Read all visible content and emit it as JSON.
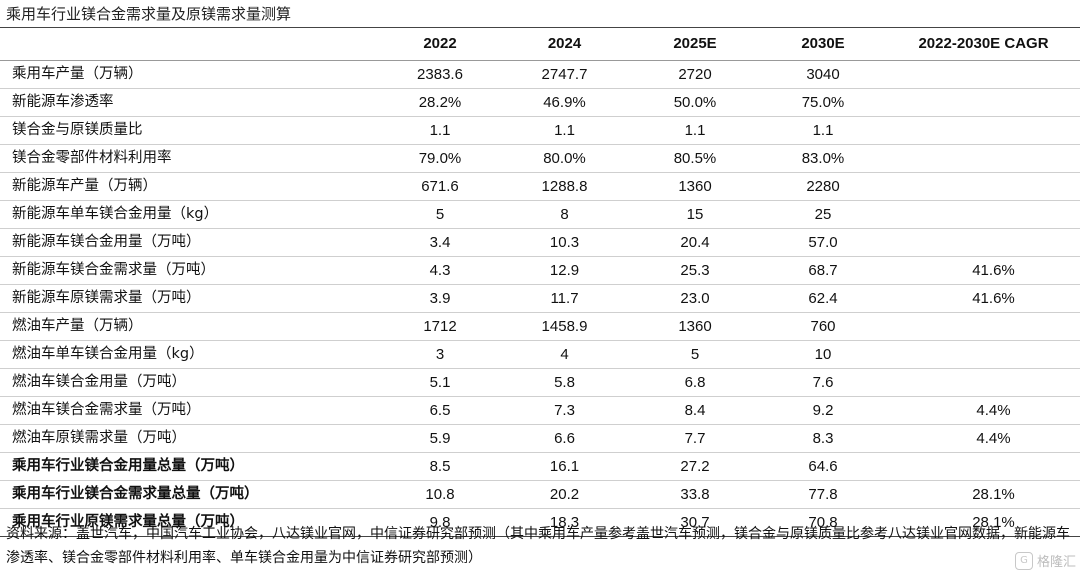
{
  "title": "乘用车行业镁合金需求量及原镁需求量测算",
  "table": {
    "headers": [
      "",
      "2022",
      "2024",
      "2025E",
      "2030E",
      "2022-2030E CAGR"
    ],
    "rows": [
      {
        "label": "乘用车产量（万辆）",
        "v2022": "2383.6",
        "v2024": "2747.7",
        "v2025": "2720",
        "v2030": "3040",
        "cagr": "",
        "bold": false
      },
      {
        "label": "新能源车渗透率",
        "v2022": "28.2%",
        "v2024": "46.9%",
        "v2025": "50.0%",
        "v2030": "75.0%",
        "cagr": "",
        "bold": false
      },
      {
        "label": "镁合金与原镁质量比",
        "v2022": "1.1",
        "v2024": "1.1",
        "v2025": "1.1",
        "v2030": "1.1",
        "cagr": "",
        "bold": false
      },
      {
        "label": "镁合金零部件材料利用率",
        "v2022": "79.0%",
        "v2024": "80.0%",
        "v2025": "80.5%",
        "v2030": "83.0%",
        "cagr": "",
        "bold": false
      },
      {
        "label": "新能源车产量（万辆）",
        "v2022": "671.6",
        "v2024": "1288.8",
        "v2025": "1360",
        "v2030": "2280",
        "cagr": "",
        "bold": false
      },
      {
        "label": "新能源车单车镁合金用量（kg）",
        "v2022": "5",
        "v2024": "8",
        "v2025": "15",
        "v2030": "25",
        "cagr": "",
        "bold": false
      },
      {
        "label": "新能源车镁合金用量（万吨）",
        "v2022": "3.4",
        "v2024": "10.3",
        "v2025": "20.4",
        "v2030": "57.0",
        "cagr": "",
        "bold": false
      },
      {
        "label": "新能源车镁合金需求量（万吨）",
        "v2022": "4.3",
        "v2024": "12.9",
        "v2025": "25.3",
        "v2030": "68.7",
        "cagr": "41.6%",
        "bold": false
      },
      {
        "label": "新能源车原镁需求量（万吨）",
        "v2022": "3.9",
        "v2024": "11.7",
        "v2025": "23.0",
        "v2030": "62.4",
        "cagr": "41.6%",
        "bold": false
      },
      {
        "label": "燃油车产量（万辆）",
        "v2022": "1712",
        "v2024": "1458.9",
        "v2025": "1360",
        "v2030": "760",
        "cagr": "",
        "bold": false
      },
      {
        "label": "燃油车单车镁合金用量（kg）",
        "v2022": "3",
        "v2024": "4",
        "v2025": "5",
        "v2030": "10",
        "cagr": "",
        "bold": false
      },
      {
        "label": "燃油车镁合金用量（万吨）",
        "v2022": "5.1",
        "v2024": "5.8",
        "v2025": "6.8",
        "v2030": "7.6",
        "cagr": "",
        "bold": false
      },
      {
        "label": "燃油车镁合金需求量（万吨）",
        "v2022": "6.5",
        "v2024": "7.3",
        "v2025": "8.4",
        "v2030": "9.2",
        "cagr": "4.4%",
        "bold": false
      },
      {
        "label": "燃油车原镁需求量（万吨）",
        "v2022": "5.9",
        "v2024": "6.6",
        "v2025": "7.7",
        "v2030": "8.3",
        "cagr": "4.4%",
        "bold": false
      },
      {
        "label": "乘用车行业镁合金用量总量（万吨）",
        "v2022": "8.5",
        "v2024": "16.1",
        "v2025": "27.2",
        "v2030": "64.6",
        "cagr": "",
        "bold": true
      },
      {
        "label": "乘用车行业镁合金需求量总量（万吨）",
        "v2022": "10.8",
        "v2024": "20.2",
        "v2025": "33.8",
        "v2030": "77.8",
        "cagr": "28.1%",
        "bold": true
      },
      {
        "label": "乘用车行业原镁需求量总量（万吨）",
        "v2022": "9.8",
        "v2024": "18.3",
        "v2025": "30.7",
        "v2030": "70.8",
        "cagr": "28.1%",
        "bold": true
      }
    ]
  },
  "source": "资料来源：盖世汽车，中国汽车工业协会，八达镁业官网，中信证券研究部预测（其中乘用车产量参考盖世汽车预测，镁合金与原镁质量比参考八达镁业官网数据，新能源车渗透率、镁合金零部件材料利用率、单车镁合金用量为中信证券研究部预测）",
  "watermark": "格隆汇"
}
